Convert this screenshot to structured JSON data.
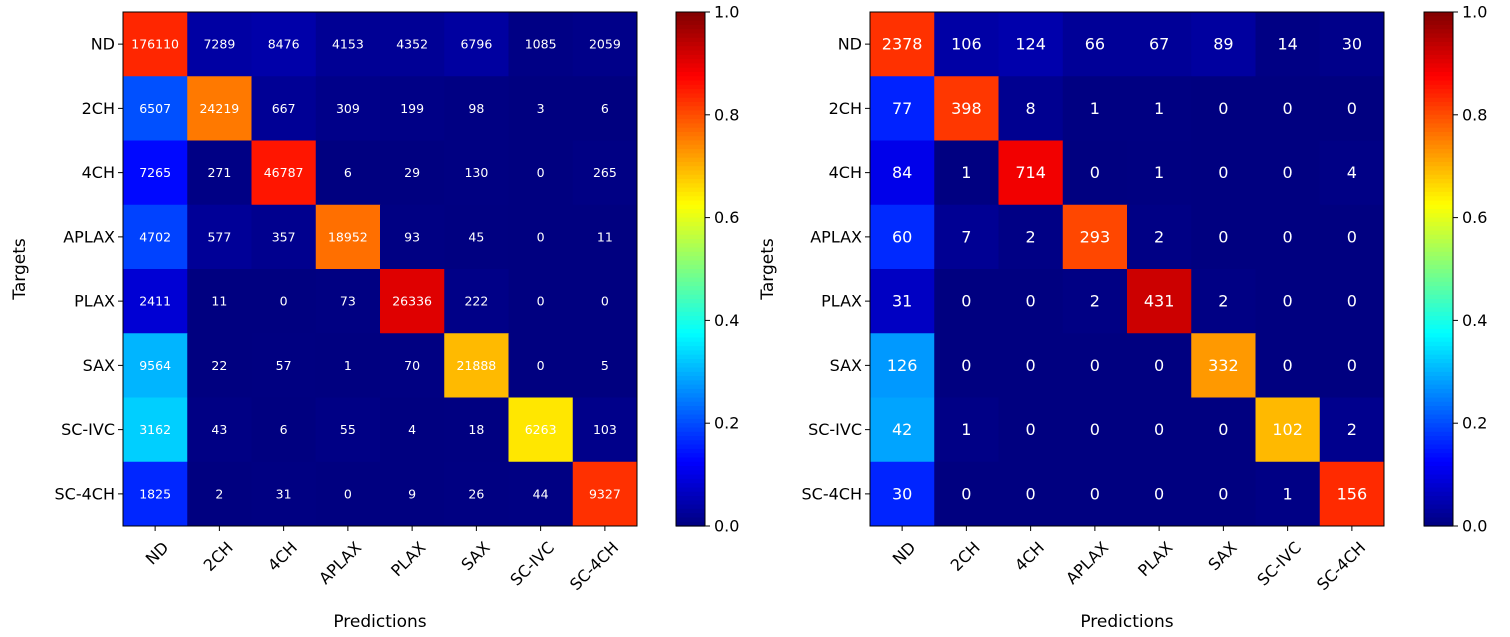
{
  "chart_data": [
    {
      "type": "heatmap",
      "title": "",
      "xlabel": "Predictions",
      "ylabel": "Targets",
      "x_categories": [
        "ND",
        "2CH",
        "4CH",
        "APLAX",
        "PLAX",
        "SAX",
        "SC-IVC",
        "SC-4CH"
      ],
      "y_categories": [
        "ND",
        "2CH",
        "4CH",
        "APLAX",
        "PLAX",
        "SAX",
        "SC-IVC",
        "SC-4CH"
      ],
      "values": [
        [
          176110,
          7289,
          8476,
          4153,
          4352,
          6796,
          1085,
          2059
        ],
        [
          6507,
          24219,
          667,
          309,
          199,
          98,
          3,
          6
        ],
        [
          7265,
          271,
          46787,
          6,
          29,
          130,
          0,
          265
        ],
        [
          4702,
          577,
          357,
          18952,
          93,
          45,
          0,
          11
        ],
        [
          2411,
          11,
          0,
          73,
          26336,
          222,
          0,
          0
        ],
        [
          9564,
          22,
          57,
          1,
          70,
          21888,
          0,
          5
        ],
        [
          3162,
          43,
          6,
          55,
          4,
          18,
          6263,
          103
        ],
        [
          1825,
          2,
          31,
          0,
          9,
          26,
          44,
          9327
        ]
      ],
      "color_scale": "jet",
      "normalization": "row",
      "colorbar_ticks": [
        "0.0",
        "0.2",
        "0.4",
        "0.6",
        "0.8",
        "1.0"
      ],
      "colorbar_range": [
        0,
        1
      ]
    },
    {
      "type": "heatmap",
      "title": "",
      "xlabel": "Predictions",
      "ylabel": "Targets",
      "x_categories": [
        "ND",
        "2CH",
        "4CH",
        "APLAX",
        "PLAX",
        "SAX",
        "SC-IVC",
        "SC-4CH"
      ],
      "y_categories": [
        "ND",
        "2CH",
        "4CH",
        "APLAX",
        "PLAX",
        "SAX",
        "SC-IVC",
        "SC-4CH"
      ],
      "values": [
        [
          2378,
          106,
          124,
          66,
          67,
          89,
          14,
          30
        ],
        [
          77,
          398,
          8,
          1,
          1,
          0,
          0,
          0
        ],
        [
          84,
          1,
          714,
          0,
          1,
          0,
          0,
          4
        ],
        [
          60,
          7,
          2,
          293,
          2,
          0,
          0,
          0
        ],
        [
          31,
          0,
          0,
          2,
          431,
          2,
          0,
          0
        ],
        [
          126,
          0,
          0,
          0,
          0,
          332,
          0,
          0
        ],
        [
          42,
          1,
          0,
          0,
          0,
          0,
          102,
          2
        ],
        [
          30,
          0,
          0,
          0,
          0,
          0,
          1,
          156
        ]
      ],
      "color_scale": "jet",
      "normalization": "row",
      "colorbar_ticks": [
        "0.0",
        "0.2",
        "0.4",
        "0.6",
        "0.8",
        "1.0"
      ],
      "colorbar_range": [
        0,
        1
      ]
    }
  ]
}
